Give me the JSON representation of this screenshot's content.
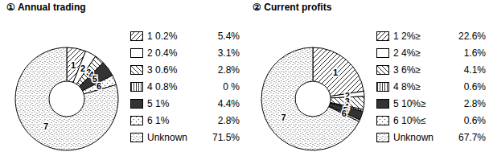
{
  "chart_data": [
    {
      "type": "pie",
      "title": "① Annual trading",
      "categories": [
        "1 0.2%",
        "2 0.4%",
        "3 0.6%",
        "4 0.8%",
        "5 1%",
        "6 1%",
        "Unknown"
      ],
      "values": [
        5.4,
        3.1,
        2.8,
        0,
        4.4,
        2.8,
        71.5
      ],
      "value_labels": [
        "5.4%",
        "3.1%",
        "2.8%",
        "0 %",
        "4.4%",
        "2.8%",
        "71.5%"
      ],
      "annotations": [
        "1",
        "2",
        "3",
        "4",
        "5",
        "6",
        "7"
      ],
      "colors": [
        "#222222",
        "#ffffff",
        "#222222",
        "#222222",
        "#333333",
        "#555555",
        "#444444"
      ],
      "legend": "right"
    },
    {
      "type": "pie",
      "title": "② Current profits",
      "categories": [
        "1 2%≥",
        "2 4%≥",
        "3 6%≥",
        "4 8%≥",
        "5 10%≥",
        "6 10%≤",
        "Unknown"
      ],
      "values": [
        22.6,
        1.6,
        4.1,
        0.6,
        2.8,
        0.6,
        67.7
      ],
      "value_labels": [
        "22.6%",
        "1.6%",
        "4.1%",
        "0.6%",
        "2.8%",
        "0.6%",
        "67.7%"
      ],
      "annotations": [
        "1",
        "2",
        "3",
        "4",
        "5",
        "6",
        "7"
      ],
      "colors": [
        "#222222",
        "#ffffff",
        "#222222",
        "#222222",
        "#333333",
        "#555555",
        "#444444"
      ],
      "legend": "right"
    }
  ]
}
